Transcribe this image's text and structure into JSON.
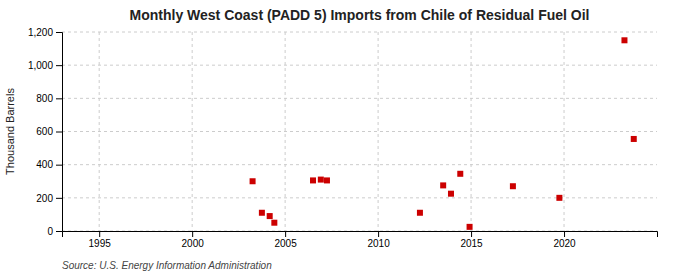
{
  "chart_data": {
    "type": "scatter",
    "title": "Monthly West Coast (PADD 5) Imports from Chile of Residual Fuel Oil",
    "ylabel": "Thousand Barrels",
    "source": "Source: U.S. Energy Information Administration",
    "x": [
      2003.25,
      2003.75,
      2004.17,
      2004.42,
      2006.5,
      2006.92,
      2007.25,
      2012.25,
      2013.5,
      2013.92,
      2014.42,
      2014.92,
      2017.25,
      2019.75,
      2023.25,
      2023.75
    ],
    "values": [
      300,
      110,
      90,
      50,
      305,
      310,
      305,
      110,
      275,
      225,
      345,
      25,
      270,
      200,
      1150,
      555
    ],
    "color": "#cc0000",
    "marker": "square",
    "xlim": [
      1993,
      2025
    ],
    "ylim": [
      0,
      1200
    ],
    "xticks": [
      1995,
      2000,
      2005,
      2010,
      2015,
      2020
    ],
    "yticks": [
      0,
      200,
      400,
      600,
      800,
      {
        "value": 1000,
        "label": "1,000"
      },
      {
        "value": 1200,
        "label": "1,200"
      }
    ],
    "grid": true
  }
}
